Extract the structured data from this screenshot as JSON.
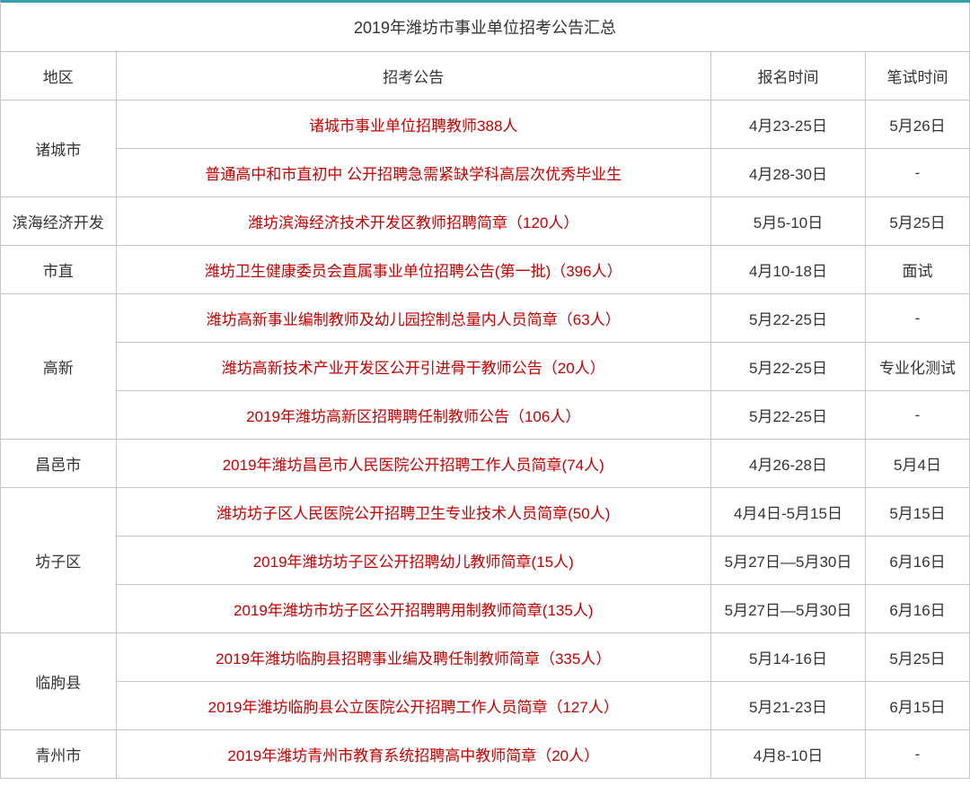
{
  "title": "2019年潍坊市事业单位招考公告汇总",
  "headers": {
    "region": "地区",
    "notice": "招考公告",
    "signup": "报名时间",
    "exam": "笔试时间"
  },
  "colors": {
    "border_top": "#3a9db0",
    "border": "#c5c5c5",
    "text_normal": "#333333",
    "text_link": "#c40000",
    "background": "#ffffff"
  },
  "regions": [
    {
      "name": "诸城市",
      "rows": [
        {
          "notice": "诸城市事业单位招聘教师388人",
          "signup": "4月23-25日",
          "exam": "5月26日"
        },
        {
          "notice": "普通高中和市直初中 公开招聘急需紧缺学科高层次优秀毕业生",
          "signup": "4月28-30日",
          "exam": "-"
        }
      ]
    },
    {
      "name": "滨海经济开发",
      "rows": [
        {
          "notice": "潍坊滨海经济技术开发区教师招聘简章（120人）",
          "signup": "5月5-10日",
          "exam": "5月25日"
        }
      ]
    },
    {
      "name": "市直",
      "rows": [
        {
          "notice": "潍坊卫生健康委员会直属事业单位招聘公告(第一批)（396人）",
          "signup": "4月10-18日",
          "exam": "面试"
        }
      ]
    },
    {
      "name": "高新",
      "rows": [
        {
          "notice": "潍坊高新事业编制教师及幼儿园控制总量内人员简章（63人）",
          "signup": "5月22-25日",
          "exam": "-"
        },
        {
          "notice": "潍坊高新技术产业开发区公开引进骨干教师公告（20人）",
          "signup": "5月22-25日",
          "exam": "专业化测试"
        },
        {
          "notice": "2019年潍坊高新区招聘聘任制教师公告（106人）",
          "signup": "5月22-25日",
          "exam": "-"
        }
      ]
    },
    {
      "name": "昌邑市",
      "rows": [
        {
          "notice": "2019年潍坊昌邑市人民医院公开招聘工作人员简章(74人)",
          "signup": "4月26-28日",
          "exam": "5月4日"
        }
      ]
    },
    {
      "name": "坊子区",
      "rows": [
        {
          "notice": "潍坊坊子区人民医院公开招聘卫生专业技术人员简章(50人)",
          "signup": "4月4日-5月15日",
          "exam": "5月15日"
        },
        {
          "notice": "2019年潍坊坊子区公开招聘幼儿教师简章(15人)",
          "signup": "5月27日—5月30日",
          "exam": "6月16日"
        },
        {
          "notice": "2019年潍坊市坊子区公开招聘聘用制教师简章(135人)",
          "signup": "5月27日—5月30日",
          "exam": "6月16日"
        }
      ]
    },
    {
      "name": "临朐县",
      "rows": [
        {
          "notice": "2019年潍坊临朐县招聘事业编及聘任制教师简章（335人）",
          "signup": "5月14-16日",
          "exam": "5月25日"
        },
        {
          "notice": "2019年潍坊临朐县公立医院公开招聘工作人员简章（127人）",
          "signup": "5月21-23日",
          "exam": "6月15日"
        }
      ]
    },
    {
      "name": "青州市",
      "rows": [
        {
          "notice": "2019年潍坊青州市教育系统招聘高中教师简章（20人）",
          "signup": "4月8-10日",
          "exam": "-"
        }
      ]
    }
  ]
}
